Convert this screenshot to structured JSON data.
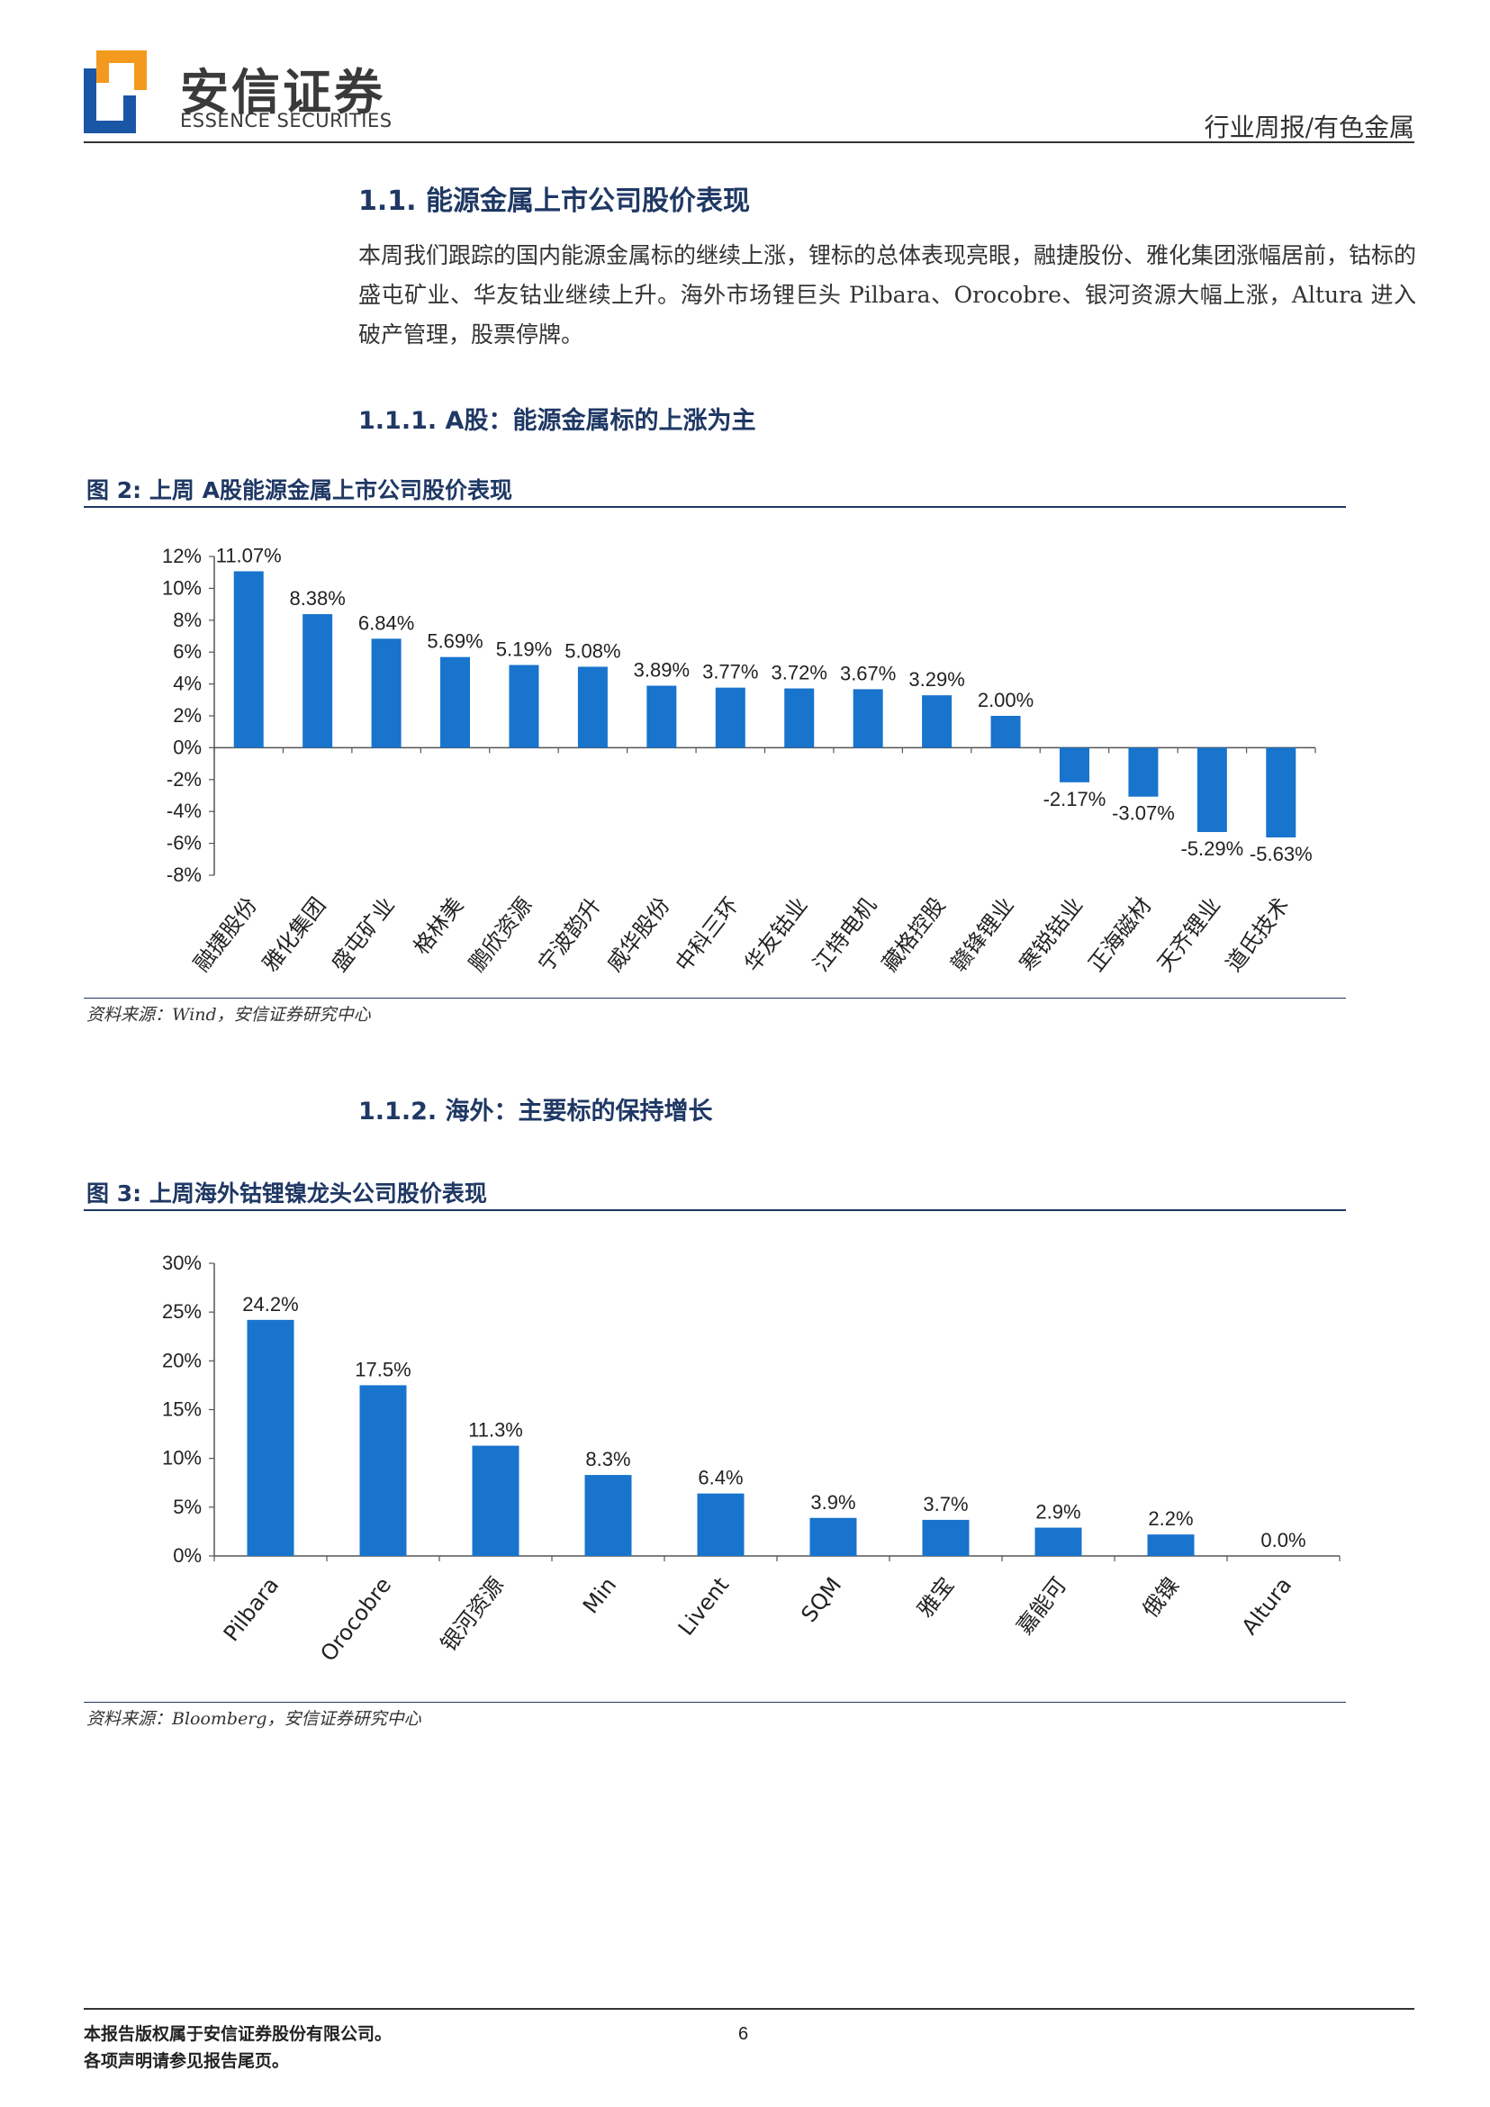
{
  "header": {
    "logo_cn": "安信证券",
    "logo_en": "ESSENCE SECURITIES",
    "category": "行业周报/有色金属",
    "logo_colors": {
      "blue": "#1a56a6",
      "orange": "#f39a1e"
    }
  },
  "section": {
    "number": "1.1.",
    "title": "能源金属上市公司股价表现",
    "paragraph": "本周我们跟踪的国内能源金属标的继续上涨，锂标的总体表现亮眼，融捷股份、雅化集团涨幅居前，钴标的盛屯矿业、华友钴业继续上升。海外市场锂巨头 Pilbara、Orocobre、银河资源大幅上涨，Altura 进入破产管理，股票停牌。"
  },
  "sub1": {
    "number": "1.1.1.",
    "title_a": "A",
    "title": "股：能源金属标的上涨为主"
  },
  "fig2": {
    "label": "图",
    "number": "2:",
    "title_pre": "上周",
    "title_a": "A",
    "title": "股能源金属上市公司股价表现",
    "source": "资料来源：Wind，安信证券研究中心"
  },
  "sub2": {
    "number": "1.1.2.",
    "title": "海外：主要标的保持增长"
  },
  "fig3": {
    "label": "图",
    "number": "3:",
    "title": "上周海外钴锂镍龙头公司股价表现",
    "source": "资料来源：Bloomberg，安信证券研究中心"
  },
  "chart_data": [
    {
      "type": "bar",
      "categories": [
        "融捷股份",
        "雅化集团",
        "盛屯矿业",
        "格林美",
        "鹏欣资源",
        "宁波韵升",
        "威华股份",
        "中科三环",
        "华友钴业",
        "江特电机",
        "藏格控股",
        "赣锋锂业",
        "寒锐钴业",
        "正海磁材",
        "天齐锂业",
        "道氏技术"
      ],
      "values": [
        11.07,
        8.38,
        6.84,
        5.69,
        5.19,
        5.08,
        3.89,
        3.77,
        3.72,
        3.67,
        3.29,
        2.0,
        -2.17,
        -3.07,
        -5.29,
        -5.63
      ],
      "data_labels": [
        "11.07%",
        "8.38%",
        "6.84%",
        "5.69%",
        "5.19%",
        "5.08%",
        "3.89%",
        "3.77%",
        "3.72%",
        "3.67%",
        "3.29%",
        "2.00%",
        "-2.17%",
        "-3.07%",
        "-5.29%",
        "-5.63%"
      ],
      "yticks": [
        "12%",
        "10%",
        "8%",
        "6%",
        "4%",
        "2%",
        "0%",
        "-2%",
        "-4%",
        "-6%",
        "-8%"
      ],
      "ylim": [
        -8,
        12
      ],
      "color": "#1874cd",
      "grid": false,
      "title": "",
      "xlabel": "",
      "ylabel": ""
    },
    {
      "type": "bar",
      "categories": [
        "Pilbara",
        "Orocobre",
        "银河资源",
        "Min",
        "Livent",
        "SQM",
        "雅宝",
        "嘉能可",
        "俄镍",
        "Altura"
      ],
      "values": [
        24.2,
        17.5,
        11.3,
        8.3,
        6.4,
        3.9,
        3.7,
        2.9,
        2.2,
        0.0
      ],
      "data_labels": [
        "24.2%",
        "17.5%",
        "11.3%",
        "8.3%",
        "6.4%",
        "3.9%",
        "3.7%",
        "2.9%",
        "2.2%",
        "0.0%"
      ],
      "yticks": [
        "30%",
        "25%",
        "20%",
        "15%",
        "10%",
        "5%",
        "0%"
      ],
      "ylim": [
        0,
        30
      ],
      "color": "#1874cd",
      "grid": false,
      "title": "",
      "xlabel": "",
      "ylabel": ""
    }
  ],
  "footer": {
    "line1": "本报告版权属于安信证券股份有限公司。",
    "line2": "各项声明请参见报告尾页。",
    "page": "6"
  }
}
